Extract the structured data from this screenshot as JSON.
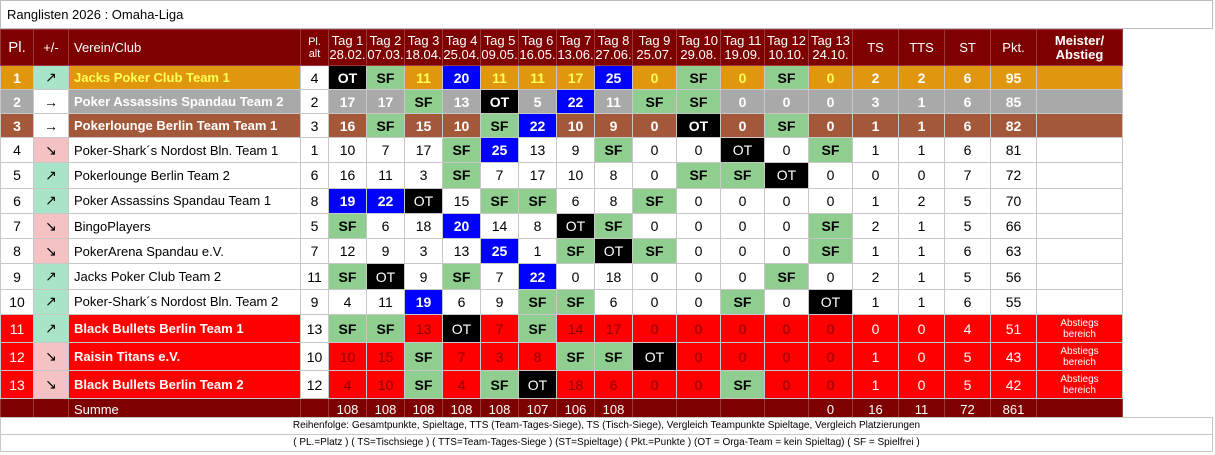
{
  "title": "Ranglisten 2026 : Omaha-Liga",
  "headers": {
    "pl": "Pl.",
    "change": "+/-",
    "club": "Verein/Club",
    "pl_alt_1": "Pl.",
    "pl_alt_2": "alt",
    "days": [
      {
        "label": "Tag 1",
        "date": "28.02."
      },
      {
        "label": "Tag 2",
        "date": "07.03."
      },
      {
        "label": "Tag 3",
        "date": "18.04."
      },
      {
        "label": "Tag 4",
        "date": "25.04."
      },
      {
        "label": "Tag 5",
        "date": "09.05."
      },
      {
        "label": "Tag 6",
        "date": "16.05."
      },
      {
        "label": "Tag 7",
        "date": "13.06."
      },
      {
        "label": "Tag 8",
        "date": "27.06."
      },
      {
        "label": "Tag 9",
        "date": "25.07."
      },
      {
        "label": "Tag 10",
        "date": "29.08."
      },
      {
        "label": "Tag 11",
        "date": "19.09."
      },
      {
        "label": "Tag 12",
        "date": "10.10."
      },
      {
        "label": "Tag 13",
        "date": "24.10."
      }
    ],
    "ts": "TS",
    "tts": "TTS",
    "st": "ST",
    "pkt": "Pkt.",
    "meister_1": "Meister/",
    "meister_2": "Abstieg"
  },
  "rows": [
    {
      "pl": "1",
      "arrow": "↗",
      "dir": "up",
      "name": "Jacks Poker Club Team 1",
      "pl_alt": "4",
      "days": [
        "OT",
        "SF",
        "11",
        "20",
        "11",
        "11",
        "17",
        "25",
        "0",
        "SF",
        "0",
        "SF",
        "0"
      ],
      "ts": "2",
      "tts": "2",
      "st": "6",
      "pkt": "95",
      "note": ""
    },
    {
      "pl": "2",
      "arrow": "→",
      "dir": "right",
      "name": "Poker Assassins Spandau Team 2",
      "pl_alt": "2",
      "days": [
        "17",
        "17",
        "SF",
        "13",
        "OT",
        "5",
        "22",
        "11",
        "SF",
        "SF",
        "0",
        "0",
        "0"
      ],
      "ts": "3",
      "tts": "1",
      "st": "6",
      "pkt": "85",
      "note": ""
    },
    {
      "pl": "3",
      "arrow": "→",
      "dir": "right",
      "name": "Pokerlounge Berlin Team Team 1",
      "pl_alt": "3",
      "days": [
        "16",
        "SF",
        "15",
        "10",
        "SF",
        "22",
        "10",
        "9",
        "0",
        "OT",
        "0",
        "SF",
        "0"
      ],
      "ts": "1",
      "tts": "1",
      "st": "6",
      "pkt": "82",
      "note": ""
    },
    {
      "pl": "4",
      "arrow": "↘",
      "dir": "down",
      "name": "Poker-Shark´s Nordost Bln. Team 1",
      "pl_alt": "1",
      "days": [
        "10",
        "7",
        "17",
        "SF",
        "25",
        "13",
        "9",
        "SF",
        "0",
        "0",
        "OT",
        "0",
        "SF"
      ],
      "ts": "1",
      "tts": "1",
      "st": "6",
      "pkt": "81",
      "note": ""
    },
    {
      "pl": "5",
      "arrow": "↗",
      "dir": "up",
      "name": "Pokerlounge Berlin Team 2",
      "pl_alt": "6",
      "days": [
        "16",
        "11",
        "3",
        "SF",
        "7",
        "17",
        "10",
        "8",
        "0",
        "SF",
        "SF",
        "OT",
        "0"
      ],
      "ts": "0",
      "tts": "0",
      "st": "7",
      "pkt": "72",
      "note": ""
    },
    {
      "pl": "6",
      "arrow": "↗",
      "dir": "up",
      "name": "Poker Assassins Spandau Team 1",
      "pl_alt": "8",
      "days": [
        "19",
        "22",
        "OT",
        "15",
        "SF",
        "SF",
        "6",
        "8",
        "SF",
        "0",
        "0",
        "0",
        "0"
      ],
      "ts": "1",
      "tts": "2",
      "st": "5",
      "pkt": "70",
      "note": ""
    },
    {
      "pl": "7",
      "arrow": "↘",
      "dir": "down",
      "name": "BingoPlayers",
      "pl_alt": "5",
      "days": [
        "SF",
        "6",
        "18",
        "20",
        "14",
        "8",
        "OT",
        "SF",
        "0",
        "0",
        "0",
        "0",
        "SF"
      ],
      "ts": "2",
      "tts": "1",
      "st": "5",
      "pkt": "66",
      "note": ""
    },
    {
      "pl": "8",
      "arrow": "↘",
      "dir": "down",
      "name": "PokerArena Spandau e.V.",
      "pl_alt": "7",
      "days": [
        "12",
        "9",
        "3",
        "13",
        "25",
        "1",
        "SF",
        "OT",
        "SF",
        "0",
        "0",
        "0",
        "SF"
      ],
      "ts": "1",
      "tts": "1",
      "st": "6",
      "pkt": "63",
      "note": ""
    },
    {
      "pl": "9",
      "arrow": "↗",
      "dir": "up",
      "name": "Jacks Poker Club Team 2",
      "pl_alt": "11",
      "days": [
        "SF",
        "OT",
        "9",
        "SF",
        "7",
        "22",
        "0",
        "18",
        "0",
        "0",
        "0",
        "SF",
        "0"
      ],
      "ts": "2",
      "tts": "1",
      "st": "5",
      "pkt": "56",
      "note": ""
    },
    {
      "pl": "10",
      "arrow": "↗",
      "dir": "up",
      "name": "Poker-Shark´s Nordost Bln. Team 2",
      "pl_alt": "9",
      "days": [
        "4",
        "11",
        "19",
        "6",
        "9",
        "SF",
        "SF",
        "6",
        "0",
        "0",
        "SF",
        "0",
        "OT"
      ],
      "ts": "1",
      "tts": "1",
      "st": "6",
      "pkt": "55",
      "note": ""
    },
    {
      "pl": "11",
      "arrow": "↗",
      "dir": "up",
      "name": "Black Bullets Berlin Team 1",
      "pl_alt": "13",
      "days": [
        "SF",
        "SF",
        "13",
        "OT",
        "7",
        "SF",
        "14",
        "17",
        "0",
        "0",
        "0",
        "0",
        "0"
      ],
      "ts": "0",
      "tts": "0",
      "st": "4",
      "pkt": "51",
      "note": "Abstiegs bereich"
    },
    {
      "pl": "12",
      "arrow": "↘",
      "dir": "down",
      "name": "Raisin Titans e.V.",
      "pl_alt": "10",
      "days": [
        "10",
        "15",
        "SF",
        "7",
        "3",
        "8",
        "SF",
        "SF",
        "OT",
        "0",
        "0",
        "0",
        "0"
      ],
      "ts": "1",
      "tts": "0",
      "st": "5",
      "pkt": "43",
      "note": "Abstiegs bereich"
    },
    {
      "pl": "13",
      "arrow": "↘",
      "dir": "down",
      "name": "Black Bullets Berlin Team 2",
      "pl_alt": "12",
      "days": [
        "4",
        "10",
        "SF",
        "4",
        "SF",
        "OT",
        "18",
        "6",
        "0",
        "0",
        "SF",
        "0",
        "0"
      ],
      "ts": "1",
      "tts": "0",
      "st": "5",
      "pkt": "42",
      "note": "Abstiegs bereich"
    }
  ],
  "blue_cells": [
    "0-3",
    "0-7",
    "1-6",
    "2-5",
    "3-4",
    "5-0",
    "5-1",
    "6-3",
    "7-4",
    "8-5",
    "9-2"
  ],
  "sum": {
    "label": "Summe",
    "days": [
      "108",
      "108",
      "108",
      "108",
      "108",
      "107",
      "106",
      "108",
      "",
      "",
      "",
      "",
      "0"
    ],
    "ts": "16",
    "tts": "11",
    "st": "72",
    "pkt": "861"
  },
  "footer": {
    "line1": "Reihenfolge: Gesamtpunkte, Spieltage, TTS (Team-Tages-Siege), TS (Tisch-Siege), Vergleich Teampunkte Spieltage, Vergleich Platzierungen",
    "line2": "( PL.=Platz ) ( TS=Tischsiege ) ( TTS=Team-Tages-Siege ) (ST=Spieltage) ( Pkt.=Punkte ) (OT = Orga-Team = kein Spieltag) ( SF = Spielfrei )"
  },
  "colors": {
    "header": "#7f0000",
    "gold": "#e0960f",
    "silver": "#a9a9a9",
    "bronze": "#a3583a",
    "relegation": "#ff0000",
    "sf": "#8fce8f",
    "ot": "#000000",
    "best": "#0000ff"
  }
}
